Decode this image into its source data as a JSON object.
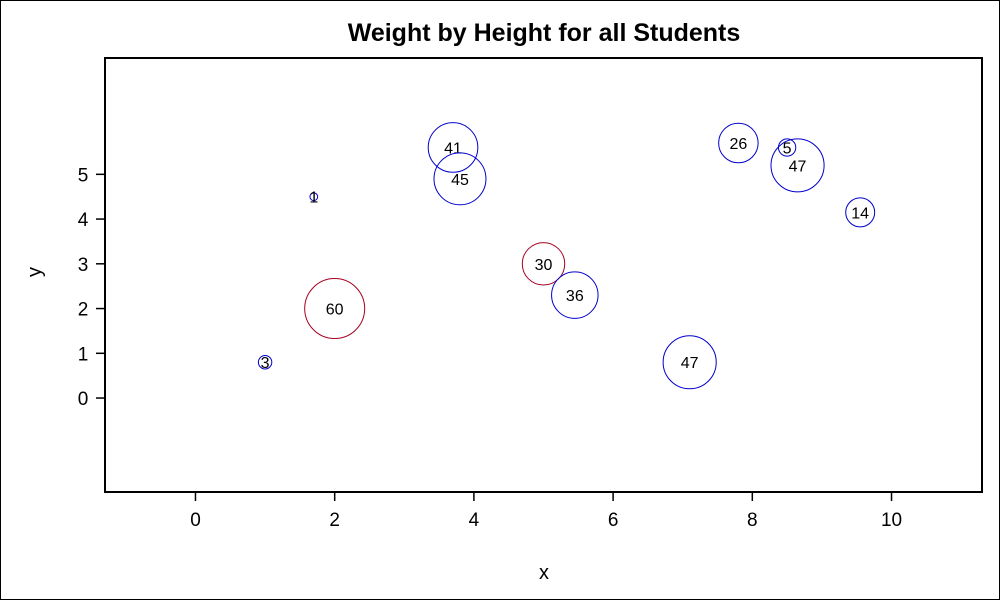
{
  "chart_data": {
    "type": "scatter",
    "title": "Weight by Height for all Students",
    "xlabel": "x",
    "ylabel": "y",
    "xlim": [
      -1.3,
      11.3
    ],
    "ylim": [
      -2.1,
      7.6
    ],
    "xticks": [
      "0",
      "2",
      "4",
      "6",
      "8",
      "10"
    ],
    "yticks": [
      "0",
      "1",
      "2",
      "3",
      "4",
      "5"
    ],
    "grid": false,
    "legend": "none",
    "colors": {
      "positive": "#0000cc",
      "negative": "#a50021",
      "frame": "#000000"
    },
    "points": [
      {
        "x": 1.0,
        "y": 0.8,
        "size": 3,
        "color": "#0000cc"
      },
      {
        "x": 1.7,
        "y": 4.5,
        "size": 1,
        "color": "#0000cc"
      },
      {
        "x": 2.0,
        "y": 2.0,
        "size": 60,
        "color": "#a50021"
      },
      {
        "x": 3.7,
        "y": 5.6,
        "size": 41,
        "color": "#0000cc"
      },
      {
        "x": 3.8,
        "y": 4.9,
        "size": 45,
        "color": "#0000cc"
      },
      {
        "x": 5.0,
        "y": 3.0,
        "size": 30,
        "color": "#a50021"
      },
      {
        "x": 5.45,
        "y": 2.3,
        "size": 36,
        "color": "#0000cc"
      },
      {
        "x": 7.1,
        "y": 0.8,
        "size": 47,
        "color": "#0000cc"
      },
      {
        "x": 7.8,
        "y": 5.7,
        "size": 26,
        "color": "#0000cc"
      },
      {
        "x": 8.5,
        "y": 5.6,
        "size": 5,
        "color": "#0000cc"
      },
      {
        "x": 8.65,
        "y": 5.2,
        "size": 47,
        "color": "#0000cc"
      },
      {
        "x": 9.55,
        "y": 4.15,
        "size": 14,
        "color": "#0000cc"
      }
    ]
  }
}
